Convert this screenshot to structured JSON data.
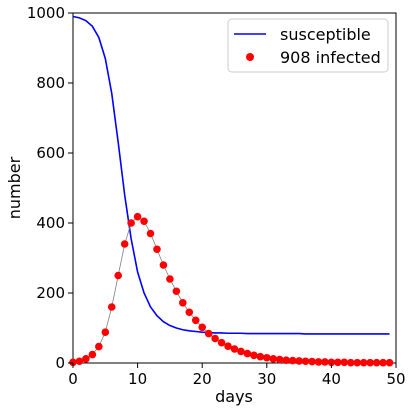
{
  "chart_data": {
    "type": "line",
    "title": "",
    "xlabel": "days",
    "ylabel": "number",
    "xlim": [
      0,
      50
    ],
    "ylim": [
      0,
      1000
    ],
    "xticks": [
      0,
      10,
      20,
      30,
      40,
      50
    ],
    "yticks": [
      0,
      200,
      400,
      600,
      800,
      1000
    ],
    "legend_position": "top-right",
    "grid": false,
    "series": [
      {
        "name": "susceptible",
        "style": "line",
        "color": "#0000ff",
        "x": [
          0,
          1,
          2,
          3,
          4,
          5,
          6,
          7,
          8,
          9,
          10,
          11,
          12,
          13,
          14,
          15,
          16,
          17,
          18,
          19,
          20,
          21,
          22,
          23,
          24,
          25,
          26,
          27,
          28,
          29,
          30,
          31,
          32,
          33,
          34,
          35,
          36,
          37,
          38,
          39,
          40,
          41,
          42,
          43,
          44,
          45,
          46,
          47,
          48,
          49
        ],
        "values": [
          990,
          986,
          978,
          962,
          930,
          870,
          770,
          630,
          480,
          355,
          260,
          200,
          160,
          135,
          118,
          107,
          100,
          95,
          92,
          90,
          88,
          87,
          86,
          86,
          85,
          85,
          85,
          84,
          84,
          84,
          84,
          84,
          84,
          84,
          84,
          84,
          83,
          83,
          83,
          83,
          83,
          83,
          83,
          83,
          83,
          83,
          83,
          83,
          83,
          83
        ]
      },
      {
        "name": "908 infected",
        "style": "scatter-connected",
        "color": "#ff0000",
        "line_color": "#808080",
        "x": [
          0,
          1,
          2,
          3,
          4,
          5,
          6,
          7,
          8,
          9,
          10,
          11,
          12,
          13,
          14,
          15,
          16,
          17,
          18,
          19,
          20,
          21,
          22,
          23,
          24,
          25,
          26,
          27,
          28,
          29,
          30,
          31,
          32,
          33,
          34,
          35,
          36,
          37,
          38,
          39,
          40,
          41,
          42,
          43,
          44,
          45,
          46,
          47,
          48,
          49
        ],
        "values": [
          2,
          5,
          12,
          24,
          47,
          88,
          160,
          250,
          340,
          400,
          418,
          405,
          370,
          325,
          280,
          240,
          205,
          172,
          145,
          122,
          102,
          84,
          70,
          58,
          48,
          40,
          33,
          27,
          22,
          18,
          15,
          12,
          10,
          8,
          7,
          6,
          5,
          4,
          3,
          3,
          2,
          2,
          2,
          1,
          1,
          1,
          1,
          1,
          1,
          1
        ]
      }
    ]
  }
}
